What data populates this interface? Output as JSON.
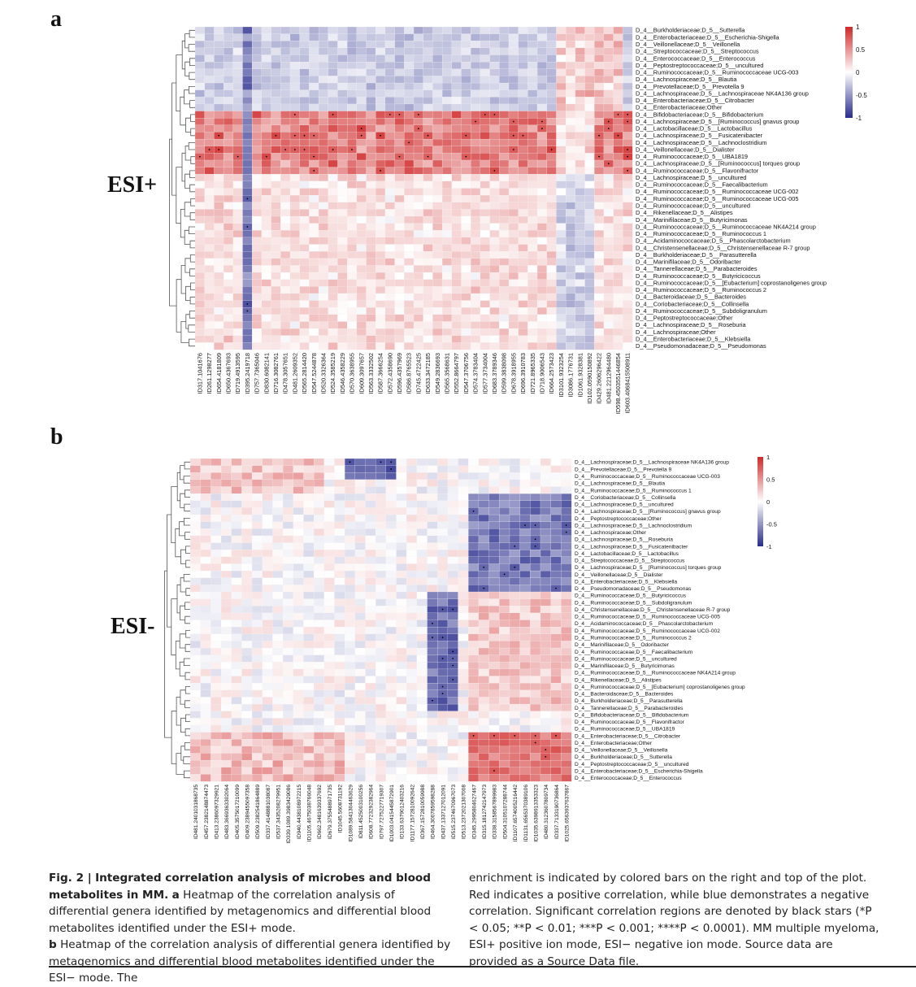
{
  "panels": [
    {
      "letter": "a",
      "mode_label": "ESI+",
      "colorbar_ticks": [
        "1",
        "0.5",
        "0",
        "-0.5",
        "-1"
      ],
      "rows": [
        "D_4__Burkholderiaceae;D_5__Sutterella",
        "D_4__Enterobacteriaceae;D_5__Escherichia-Shigella",
        "D_4__Veillonellaceae;D_5__Veillonella",
        "D_4__Streptococcaceae;D_5__Streptococcus",
        "D_4__Enterococcaceae;D_5__Enterococcus",
        "D_4__Peptostreptococcaceae;D_5__uncultured",
        "D_4__Ruminococcaceae;D_5__Ruminococcaceae UCG-003",
        "D_4__Lachnospiraceae;D_5__Blautia",
        "D_4__Prevotellaceae;D_5__Prevotella 9",
        "D_4__Lachnospiraceae;D_5__Lachnospiraceae NK4A136 group",
        "D_4__Enterobacteriaceae;D_5__Citrobacter",
        "D_4__Enterobacteriaceae;Other",
        "D_4__Bifidobacteriaceae;D_5__Bifidobacterium",
        "D_4__Lachnospiraceae;D_5__[Ruminococcus] gnavus group",
        "D_4__Lactobacillaceae;D_5__Lactobacillus",
        "D_4__Lachnospiraceae;D_5__Fusicatenibacter",
        "D_4__Lachnospiraceae;D_5__Lachnoclostridium",
        "D_4__Veillonellaceae;D_5__Dialister",
        "D_4__Ruminococcaceae;D_5__UBA1819",
        "D_4__Lachnospiraceae;D_5__[Ruminococcus] torques group",
        "D_4__Ruminococcaceae;D_5__Flavonifractor",
        "D_4__Lachnospiraceae;D_5__uncultured",
        "D_4__Ruminococcaceae;D_5__Faecalibacterium",
        "D_4__Ruminococcaceae;D_5__Ruminococcaceae UCG-002",
        "D_4__Ruminococcaceae;D_5__Ruminococcaceae UCG-005",
        "D_4__Ruminococcaceae;D_5__uncultured",
        "D_4__Rikenellaceae;D_5__Alistipes",
        "D_4__Marinifilaceae;D_5__Butyricimonas",
        "D_4__Ruminococcaceae;D_5__Ruminococcaceae NK4A214 group",
        "D_4__Ruminococcaceae;D_5__Ruminococcus 1",
        "D_4__Acidaminococcaceae;D_5__Phascolarctobacterium",
        "D_4__Christensenellaceae;D_5__Christensenellaceae R-7 group",
        "D_4__Burkholderiaceae;D_5__Parasutterella",
        "D_4__Marinifilaceae;D_5__Odoribacter",
        "D_4__Tannerellaceae;D_5__Parabacteroides",
        "D_4__Ruminococcaceae;D_5__Butyricicoccus",
        "D_4__Ruminococcaceae;D_5__[Eubacterium] coprostanoligenes group",
        "D_4__Ruminococcaceae;D_5__Ruminococcus 2",
        "D_4__Bacteroidaceae;D_5__Bacteroides",
        "D_4__Coriobacteriaceae;D_5__Collinsella",
        "D_4__Ruminococcaceae;D_5__Subdoligranulum",
        "D_4__Peptostreptococcaceae;Other",
        "D_4__Lachnospiraceae;D_5__Roseburia",
        "D_4__Lachnospiraceae;Other",
        "D_4__Enterobacteriaceae;D_5__Klebsiella",
        "D_4__Pseudomonadaceae;D_5__Pseudomonas"
      ],
      "columns": [
        "ID317.1041676",
        "ID261.1298277",
        "ID654.4181809",
        "ID650.4367693",
        "ID719.4913595",
        "ID395.2419718",
        "ID757.7365046",
        "ID830.6082141",
        "ID716.3082761",
        "ID478.3057651",
        "ID481.2609352",
        "ID565.2814420",
        "ID547.5244878",
        "ID520.3326364",
        "ID524.3585219",
        "ID546.4358229",
        "ID570.3638955",
        "ID609.3097657",
        "ID563.3332502",
        "ID587.3666254",
        "ID572.4358690",
        "ID596.4357969",
        "ID586.8765523",
        "ID745.4722425",
        "ID633.3472185",
        "ID549.2836693",
        "ID565.3568631",
        "ID552.8664797",
        "ID547.3706756",
        "ID574.3783404",
        "ID577.3734004",
        "ID683.3789346",
        "ID599.3838098",
        "ID678.3918955",
        "ID696.3910783",
        "ID721.8965335",
        "ID718.9006543",
        "ID664.2573423",
        "ID3101.9323254",
        "ID3086.1776731",
        "ID1061.9328381",
        "ID102.0590150892",
        "ID429.2606296422",
        "ID481.2212964480",
        "ID598.4503551446854",
        "ID603.4068415508911"
      ]
    },
    {
      "letter": "b",
      "mode_label": "ESI-",
      "colorbar_ticks": [
        "1",
        "0.5",
        "0",
        "-0.5",
        "-1"
      ],
      "rows": [
        "D_4__Lachnospiraceae;D_5__Lachnospiraceae NK4A136 group",
        "D_4__Prevotellaceae;D_5__Prevotella 9",
        "D_4__Ruminococcaceae;D_5__Ruminococcaceae UCG-003",
        "D_4__Lachnospiraceae;D_5__Blautia",
        "D_4__Ruminococcaceae;D_5__Ruminococcus 1",
        "D_4__Coriobacteriaceae;D_5__Collinsella",
        "D_4__Lachnospiraceae;D_5__uncultured",
        "D_4__Lachnospiraceae;D_5__[Ruminococcus] gnavus group",
        "D_4__Peptostreptococcaceae;Other",
        "D_4__Lachnospiraceae;D_5__Lachnoclostridium",
        "D_4__Lachnospiraceae;Other",
        "D_4__Lachnospiraceae;D_5__Roseburia",
        "D_4__Lachnospiraceae;D_5__Fusicatenibacter",
        "D_4__Lactobacillaceae;D_5__Lactobacillus",
        "D_4__Streptococcaceae;D_5__Streptococcus",
        "D_4__Lachnospiraceae;D_5__[Ruminococcus] torques group",
        "D_4__Veillonellaceae;D_5__Dialister",
        "D_4__Enterobacteriaceae;D_5__Klebsiella",
        "D_4__Pseudomonadaceae;D_5__Pseudomonas",
        "D_4__Ruminococcaceae;D_5__Butyricicoccus",
        "D_4__Ruminococcaceae;D_5__Subdoligranulum",
        "D_4__Christensenellaceae;D_5__Christensenellaceae R-7 group",
        "D_4__Ruminococcaceae;D_5__Ruminococcaceae UCG-005",
        "D_4__Acidaminococcaceae;D_5__Phascolarctobacterium",
        "D_4__Ruminococcaceae;D_5__Ruminococcaceae UCG-002",
        "D_4__Ruminococcaceae;D_5__Ruminococcus 2",
        "D_4__Marinifilaceae;D_5__Odoribacter",
        "D_4__Ruminococcaceae;D_5__Faecalibacterium",
        "D_4__Ruminococcaceae;D_5__uncultured",
        "D_4__Marinifilaceae;D_5__Butyricimonas",
        "D_4__Ruminococcaceae;D_5__Ruminococcaceae NK4A214 group",
        "D_4__Rikenellaceae;D_5__Alistipes",
        "D_4__Ruminococcaceae;D_5__[Eubacterium] coprostanoligenes group",
        "D_4__Bacteroidaceae;D_5__Bacteroides",
        "D_4__Burkholderiaceae;D_5__Parasutterella",
        "D_4__Tannerellaceae;D_5__Parabacteroides",
        "D_4__Bifidobacteriaceae;D_5__Bifidobacterium",
        "D_4__Ruminococcaceae;D_5__Flavonifractor",
        "D_4__Ruminococcaceae;D_5__UBA1819",
        "D_4__Enterobacteriaceae;D_5__Citrobacter",
        "D_4__Enterobacteriaceae;Other",
        "D_4__Veillonellaceae;D_5__Veillonella",
        "D_4__Burkholderiaceae;D_5__Sutterella",
        "D_4__Peptostreptococcaceae;D_5__uncultured",
        "D_4__Enterobacteriaceae;D_5__Escherichia-Shigella",
        "D_4__Enterococcaceae;D_5__Enterococcus"
      ],
      "columns": [
        "ID481.2401031868735",
        "ID457.2382148874473",
        "ID413.2386097329921",
        "ID483.3669363302064",
        "ID405.3575017210099",
        "ID409.2389455097358",
        "ID509.2382541864889",
        "ID337.4148881038087",
        "ID537.3435208279951",
        "ID339.1089.3983429086",
        "ID940.4438108972215",
        "ID1105.4675038766048",
        "ID662.3481639337692",
        "ID679.3755488971735",
        "ID1045.5608731192",
        "ID1089.5841304463629",
        "ID811.4525003100256",
        "ID608.7723292382964",
        "ID797.7275227719307",
        "ID1003.0415445872901",
        "ID133.6379012403216",
        "ID1177.1572810092642",
        "ID367.1572810059988",
        "ID464.3007859598288",
        "ID437.1337127012091",
        "ID515.2374670967073",
        "ID513.2372021307008",
        "ID345.2995804627467",
        "ID315.1812742147973",
        "ID338.3158567899983",
        "ID504.3105107288744",
        "ID1107.6574005216442",
        "ID1131.6565370389106",
        "ID1035.6398913353323",
        "ID480.3123607809734",
        "ID337.7133190736864",
        "ID1025.6563937637867"
      ]
    }
  ],
  "chart_data": [
    {
      "type": "heatmap",
      "title": "",
      "mode": "ESI+",
      "value_range": [
        -1,
        1
      ],
      "n_rows": 46,
      "n_columns": 46,
      "pattern": "rows Bifidobacterium through Flavonifractor strongly positive (~0.5-0.9) across most metabolites; top Enterobacteriaceae/Streptococcus block mostly weakly negative (~-0.2 to -0.5); lower block near zero to weakly positive with a negative column ID395.2419718"
    },
    {
      "type": "heatmap",
      "title": "",
      "mode": "ESI-",
      "value_range": [
        -1,
        1
      ],
      "n_rows": 46,
      "n_columns": 37,
      "pattern": "upper-right block strongly negative (~-0.5 to -0.8) for Collinsella through Pseudomonas; columns ID464-ID437 negative for Butyricicoccus through Parabacteroides; bottom-right block positive (~0.5-0.8) for Citrobacter through Enterococcus"
    }
  ],
  "caption": {
    "fig_label": "Fig. 2 |",
    "title": "Integrated correlation analysis of microbes and blood metabolites in MM.",
    "col1_a_label": "a",
    "col1_a_text": "Heatmap of the correlation analysis of differential genera identified by metagenomics and differential blood metabolites identified under the ESI+ mode.",
    "col1_b_label": "b",
    "col1_b_text": "Heatmap of the correlation analysis of differential genera identified by metagenomics and differential blood metabolites identified under the ESI− mode. The",
    "col2_text": "enrichment is indicated by colored bars on the right and top of the plot. Red indicates a positive correlation, while blue demonstrates a negative correlation. Significant correlation regions are denoted by black stars (*P < 0.05; **P < 0.01; ***P < 0.001; ****P < 0.0001). MM multiple myeloma, ESI+ positive ion mode, ESI− negative ion mode. Source data are provided as a Source Data file."
  }
}
